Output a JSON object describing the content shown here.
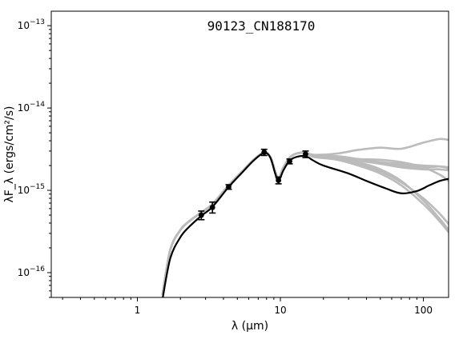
{
  "chart_data": {
    "type": "line",
    "title": "90123_CN188170",
    "xlabel": "λ (μm)",
    "ylabel": "λF_λ (ergs/cm²/s)",
    "x_scale": "log",
    "y_scale": "log",
    "xlim": [
      0.25,
      150
    ],
    "ylim": [
      5e-17,
      1.5e-13
    ],
    "x_tick_labels": [
      {
        "value": 1,
        "label": "1"
      },
      {
        "value": 10,
        "label": "10"
      },
      {
        "value": 100,
        "label": "100"
      }
    ],
    "y_tick_labels": [
      {
        "value": 1e-16,
        "label": "10",
        "exponent": "−16"
      },
      {
        "value": 1e-15,
        "label": "10",
        "exponent": "−15"
      },
      {
        "value": 1e-14,
        "label": "10",
        "exponent": "−14"
      },
      {
        "value": 1e-13,
        "label": "10",
        "exponent": "−13"
      }
    ],
    "grid": false,
    "observations": {
      "color": "#000000",
      "points": [
        {
          "x": 2.8,
          "y": 5e-16,
          "err_low": 4.4e-16,
          "err_high": 5.6e-16
        },
        {
          "x": 3.35,
          "y": 6.2e-16,
          "err_low": 5.3e-16,
          "err_high": 7.2e-16
        },
        {
          "x": 4.35,
          "y": 1.1e-15,
          "err_low": 1.03e-15,
          "err_high": 1.17e-15
        },
        {
          "x": 7.7,
          "y": 2.9e-15,
          "err_low": 2.65e-15,
          "err_high": 3.15e-15
        },
        {
          "x": 9.7,
          "y": 1.32e-15,
          "err_low": 1.2e-15,
          "err_high": 1.45e-15
        },
        {
          "x": 11.6,
          "y": 2.25e-15,
          "err_low": 2.1e-15,
          "err_high": 2.4e-15
        },
        {
          "x": 15.0,
          "y": 2.75e-15,
          "err_low": 2.5e-15,
          "err_high": 3e-15
        }
      ]
    },
    "best_fit": {
      "color": "#000000",
      "x": [
        1.5,
        1.7,
        2.0,
        2.3,
        2.8,
        3.35,
        4.35,
        5.5,
        6.5,
        7.7,
        8.5,
        9.2,
        9.7,
        10.5,
        11.6,
        13.0,
        15.0,
        17.0,
        20.0,
        30.0,
        40.0,
        55.0,
        70.0,
        90.0,
        110.0,
        130.0,
        150.0
      ],
      "y": [
        4.8e-17,
        1.5e-16,
        2.7e-16,
        3.6e-16,
        4.9e-16,
        6.3e-16,
        1.1e-15,
        1.7e-15,
        2.3e-15,
        2.85e-15,
        2.5e-15,
        1.6e-15,
        1.3e-15,
        1.75e-15,
        2.3e-15,
        2.55e-15,
        2.6e-15,
        2.3e-15,
        2e-15,
        1.6e-15,
        1.3e-15,
        1.05e-15,
        9.2e-16,
        9.8e-16,
        1.15e-15,
        1.3e-15,
        1.38e-15
      ]
    },
    "alt_models": {
      "color": "#bbbbbb",
      "shared_x": [
        1.5,
        1.7,
        2.0,
        2.3,
        2.8,
        3.35,
        4.35,
        5.5,
        6.5,
        7.7,
        8.5,
        9.2,
        9.7,
        10.5,
        11.6,
        13.0,
        15.0,
        17.0
      ],
      "shared_y": [
        5.5e-17,
        1.9e-16,
        3.3e-16,
        4.2e-16,
        5.4e-16,
        6.8e-16,
        1.15e-15,
        1.75e-15,
        2.35e-15,
        2.9e-15,
        2.55e-15,
        1.7e-15,
        1.4e-15,
        1.9e-15,
        2.5e-15,
        2.8e-15,
        2.85e-15,
        2.7e-15
      ],
      "tails": [
        {
          "x": [
            17,
            25,
            35,
            50,
            70,
            100,
            130,
            150
          ],
          "y": [
            2.7e-15,
            2.8e-15,
            3.1e-15,
            3.3e-15,
            3.2e-15,
            3.8e-15,
            4.2e-15,
            4.1e-15
          ]
        },
        {
          "x": [
            17,
            25,
            35,
            50,
            70,
            100,
            130,
            150
          ],
          "y": [
            2.7e-15,
            2.6e-15,
            2.4e-15,
            2.2e-15,
            2e-15,
            1.9e-15,
            1.95e-15,
            1.9e-15
          ]
        },
        {
          "x": [
            17,
            25,
            35,
            50,
            70,
            100,
            130,
            150
          ],
          "y": [
            2.7e-15,
            2.5e-15,
            2.3e-15,
            2.1e-15,
            1.9e-15,
            1.8e-15,
            1.8e-15,
            1.75e-15
          ]
        },
        {
          "x": [
            17,
            25,
            35,
            50,
            70,
            100,
            130,
            150
          ],
          "y": [
            2.6e-15,
            2.5e-15,
            2.4e-15,
            2.35e-15,
            2.2e-15,
            1.9e-15,
            1.55e-15,
            1.3e-15
          ]
        },
        {
          "x": [
            17,
            25,
            35,
            50,
            70,
            100,
            130,
            150
          ],
          "y": [
            2.6e-15,
            2.45e-15,
            2.2e-15,
            1.8e-15,
            1.3e-15,
            7.5e-16,
            4.5e-16,
            3.3e-16
          ]
        },
        {
          "x": [
            17,
            25,
            35,
            50,
            70,
            100,
            130,
            150
          ],
          "y": [
            2.55e-15,
            2.35e-15,
            2e-15,
            1.6e-15,
            1.15e-15,
            6.8e-16,
            4.2e-16,
            3.1e-16
          ]
        },
        {
          "x": [
            17,
            25,
            35,
            50,
            70,
            100,
            130,
            150
          ],
          "y": [
            2.6e-15,
            2.4e-15,
            2.1e-15,
            1.7e-15,
            1.25e-15,
            8e-16,
            5.2e-16,
            3.9e-16
          ]
        },
        {
          "x": [
            17,
            25,
            35,
            50,
            70,
            100,
            130,
            150
          ],
          "y": [
            2.65e-15,
            2.5e-15,
            2.35e-15,
            2.2e-15,
            2.1e-15,
            2e-15,
            1.95e-15,
            1.85e-15
          ]
        }
      ]
    }
  }
}
